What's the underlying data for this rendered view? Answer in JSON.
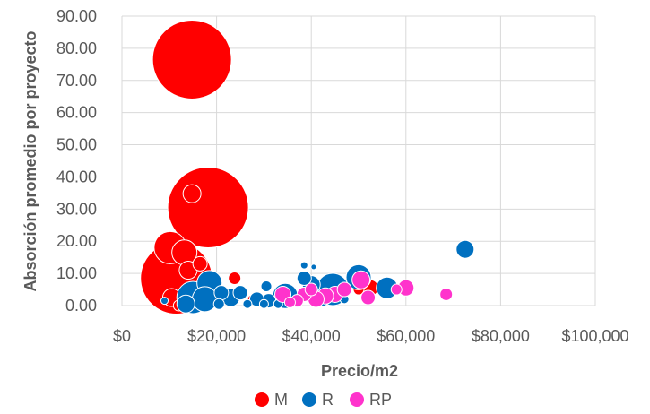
{
  "chart_data": {
    "type": "scatter",
    "variant": "bubble",
    "title": "",
    "xlabel": "Precio/m2",
    "ylabel": "Absorción promedio por proyecto",
    "xlim": [
      0,
      100000
    ],
    "ylim": [
      0,
      90
    ],
    "x_ticks": [
      "$0",
      "$20,000",
      "$40,000",
      "$60,000",
      "$80,000",
      "$100,000"
    ],
    "y_ticks": [
      "0.00",
      "10.00",
      "20.00",
      "30.00",
      "40.00",
      "50.00",
      "60.00",
      "70.00",
      "80.00",
      "90.00"
    ],
    "grid": true,
    "legend_position": "bottom",
    "series": [
      {
        "name": "M",
        "color": "#ff0000",
        "points": [
          {
            "x": 14800,
            "y": 76.5,
            "size": 44
          },
          {
            "x": 18200,
            "y": 30.5,
            "size": 45
          },
          {
            "x": 14800,
            "y": 34.8,
            "size": 10
          },
          {
            "x": 10200,
            "y": 18.0,
            "size": 18
          },
          {
            "x": 13200,
            "y": 16.5,
            "size": 14
          },
          {
            "x": 11500,
            "y": 8.5,
            "size": 40
          },
          {
            "x": 14000,
            "y": 11.0,
            "size": 10
          },
          {
            "x": 16500,
            "y": 13.0,
            "size": 8
          },
          {
            "x": 10500,
            "y": 2.5,
            "size": 10
          },
          {
            "x": 12000,
            "y": 0.0,
            "size": 6
          },
          {
            "x": 23800,
            "y": 8.5,
            "size": 7
          },
          {
            "x": 27500,
            "y": 2.0,
            "size": 5
          },
          {
            "x": 35000,
            "y": 1.5,
            "size": 4
          },
          {
            "x": 50000,
            "y": 5.0,
            "size": 6
          },
          {
            "x": 52500,
            "y": 5.5,
            "size": 9
          }
        ]
      },
      {
        "name": "R",
        "color": "#0070c0",
        "points": [
          {
            "x": 72500,
            "y": 17.5,
            "size": 10
          },
          {
            "x": 56000,
            "y": 5.5,
            "size": 12
          },
          {
            "x": 50000,
            "y": 8.8,
            "size": 14
          },
          {
            "x": 44500,
            "y": 5.0,
            "size": 18
          },
          {
            "x": 40000,
            "y": 6.5,
            "size": 10
          },
          {
            "x": 38500,
            "y": 12.5,
            "size": 4
          },
          {
            "x": 40500,
            "y": 12.0,
            "size": 3
          },
          {
            "x": 38500,
            "y": 8.5,
            "size": 8
          },
          {
            "x": 34500,
            "y": 3.0,
            "size": 14
          },
          {
            "x": 30500,
            "y": 6.0,
            "size": 6
          },
          {
            "x": 31000,
            "y": 1.5,
            "size": 8
          },
          {
            "x": 28500,
            "y": 2.0,
            "size": 8
          },
          {
            "x": 25000,
            "y": 4.0,
            "size": 8
          },
          {
            "x": 23000,
            "y": 2.5,
            "size": 10
          },
          {
            "x": 21000,
            "y": 4.0,
            "size": 8
          },
          {
            "x": 18500,
            "y": 7.0,
            "size": 14
          },
          {
            "x": 17500,
            "y": 2.0,
            "size": 14
          },
          {
            "x": 15000,
            "y": 2.5,
            "size": 18
          },
          {
            "x": 13500,
            "y": 0.5,
            "size": 10
          },
          {
            "x": 20500,
            "y": 0.5,
            "size": 6
          },
          {
            "x": 26500,
            "y": 0.5,
            "size": 5
          },
          {
            "x": 30000,
            "y": 0.5,
            "size": 5
          },
          {
            "x": 33000,
            "y": 0.5,
            "size": 5
          },
          {
            "x": 37000,
            "y": 1.0,
            "size": 6
          },
          {
            "x": 42500,
            "y": 1.5,
            "size": 6
          },
          {
            "x": 47000,
            "y": 2.0,
            "size": 5
          },
          {
            "x": 9000,
            "y": 1.5,
            "size": 4
          }
        ]
      },
      {
        "name": "RP",
        "color": "#ff33cc",
        "points": [
          {
            "x": 68500,
            "y": 3.5,
            "size": 7
          },
          {
            "x": 60000,
            "y": 5.5,
            "size": 9
          },
          {
            "x": 58000,
            "y": 5.0,
            "size": 6
          },
          {
            "x": 52000,
            "y": 2.5,
            "size": 8
          },
          {
            "x": 50500,
            "y": 8.0,
            "size": 10
          },
          {
            "x": 47000,
            "y": 5.0,
            "size": 8
          },
          {
            "x": 45000,
            "y": 3.5,
            "size": 9
          },
          {
            "x": 43000,
            "y": 3.0,
            "size": 9
          },
          {
            "x": 41000,
            "y": 2.0,
            "size": 9
          },
          {
            "x": 40000,
            "y": 5.0,
            "size": 7
          },
          {
            "x": 38500,
            "y": 3.5,
            "size": 8
          },
          {
            "x": 37000,
            "y": 1.5,
            "size": 7
          },
          {
            "x": 34000,
            "y": 3.5,
            "size": 9
          },
          {
            "x": 35500,
            "y": 1.0,
            "size": 6
          }
        ]
      }
    ]
  }
}
